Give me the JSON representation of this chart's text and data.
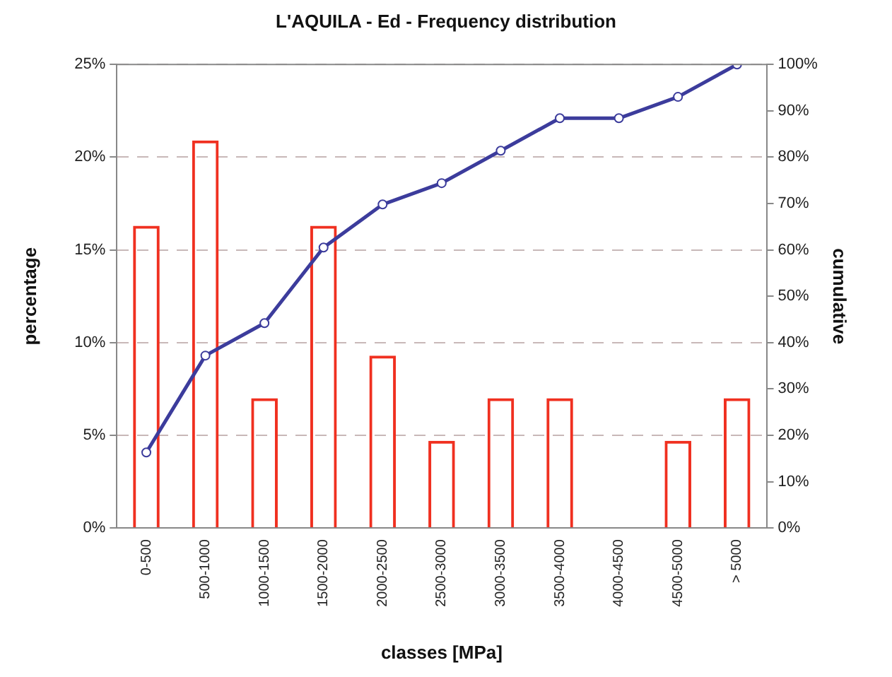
{
  "chart_data": {
    "type": "bar",
    "title": "L'AQUILA - Ed - Frequency distribution",
    "xlabel": "classes [MPa]",
    "ylabel": "percentage",
    "y2label": "cumulative",
    "categories": [
      "0-500",
      "500-1000",
      "1000-1500",
      "1500-2000",
      "2000-2500",
      "2500-3000",
      "3000-3500",
      "3500-4000",
      "4000-4500",
      "4500-5000",
      "> 5000"
    ],
    "series": [
      {
        "color": "#f03020",
        "values": [
          16.3,
          20.9,
          7.0,
          16.3,
          9.3,
          4.7,
          7.0,
          7.0,
          0,
          4.7,
          7.0
        ]
      },
      {
        "type": "line",
        "axis": "y2",
        "color": "#3c3c9c",
        "values": [
          16.3,
          37.2,
          44.2,
          60.5,
          69.8,
          74.4,
          81.4,
          88.4,
          88.4,
          93.0,
          100
        ]
      }
    ],
    "ylim": [
      0,
      25
    ],
    "yticks": [
      {
        "value": 0,
        "label": "0%"
      },
      {
        "value": 5,
        "label": "5%"
      },
      {
        "value": 10,
        "label": "10%"
      },
      {
        "value": 15,
        "label": "15%"
      },
      {
        "value": 20,
        "label": "20%"
      },
      {
        "value": 25,
        "label": "25%"
      }
    ],
    "y2lim": [
      0,
      100
    ],
    "y2ticks": [
      {
        "value": 0,
        "label": "0%"
      },
      {
        "value": 10,
        "label": "10%"
      },
      {
        "value": 20,
        "label": "20%"
      },
      {
        "value": 30,
        "label": "30%"
      },
      {
        "value": 40,
        "label": "40%"
      },
      {
        "value": 50,
        "label": "50%"
      },
      {
        "value": 60,
        "label": "60%"
      },
      {
        "value": 70,
        "label": "70%"
      },
      {
        "value": 80,
        "label": "80%"
      },
      {
        "value": 90,
        "label": "90%"
      },
      {
        "value": 100,
        "label": "100%"
      }
    ],
    "grid": "y",
    "legend": false,
    "marker": "circle",
    "line_style": "solid"
  }
}
